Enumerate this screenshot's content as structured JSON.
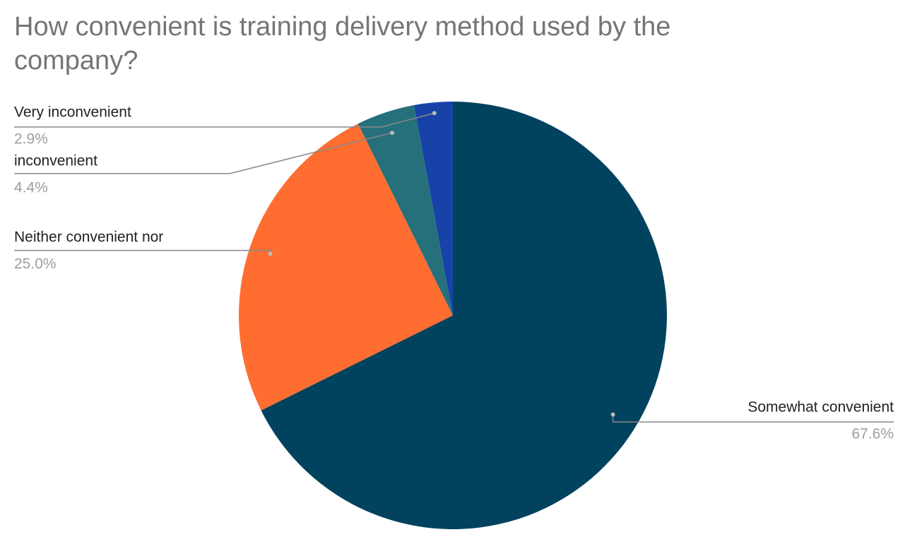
{
  "chart_data": {
    "type": "pie",
    "title": "How convenient is training delivery method used by the company?",
    "categories": [
      "Somewhat convenient",
      "Neither convenient nor",
      "inconvenient",
      "Very inconvenient"
    ],
    "values": [
      67.6,
      25.0,
      4.4,
      2.9
    ],
    "value_labels": [
      "67.6%",
      "25.0%",
      "4.4%",
      "2.9%"
    ],
    "colors": [
      "#01425e",
      "#ff6d31",
      "#26707c",
      "#1742a8"
    ]
  }
}
